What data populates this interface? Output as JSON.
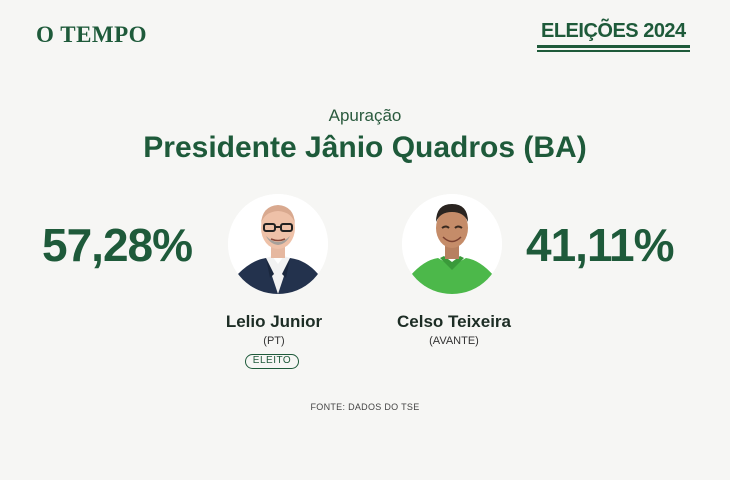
{
  "header": {
    "logo": "O TEMPO",
    "badge": "ELEIÇÕES 2024"
  },
  "main": {
    "subtitle": "Apuração",
    "title": "Presidente Jânio Quadros (BA)"
  },
  "candidates": [
    {
      "name": "Lelio Junior",
      "party": "(PT)",
      "percent": "57,28%",
      "status": "ELEITO"
    },
    {
      "name": "Celso Teixeira",
      "party": "(AVANTE)",
      "percent": "41,11%"
    }
  ],
  "footer": {
    "source": "FONTE: DADOS DO TSE"
  },
  "colors": {
    "brand": "#1e5a3a",
    "background": "#f6f6f4",
    "shirt_green": "#4cb84a"
  }
}
